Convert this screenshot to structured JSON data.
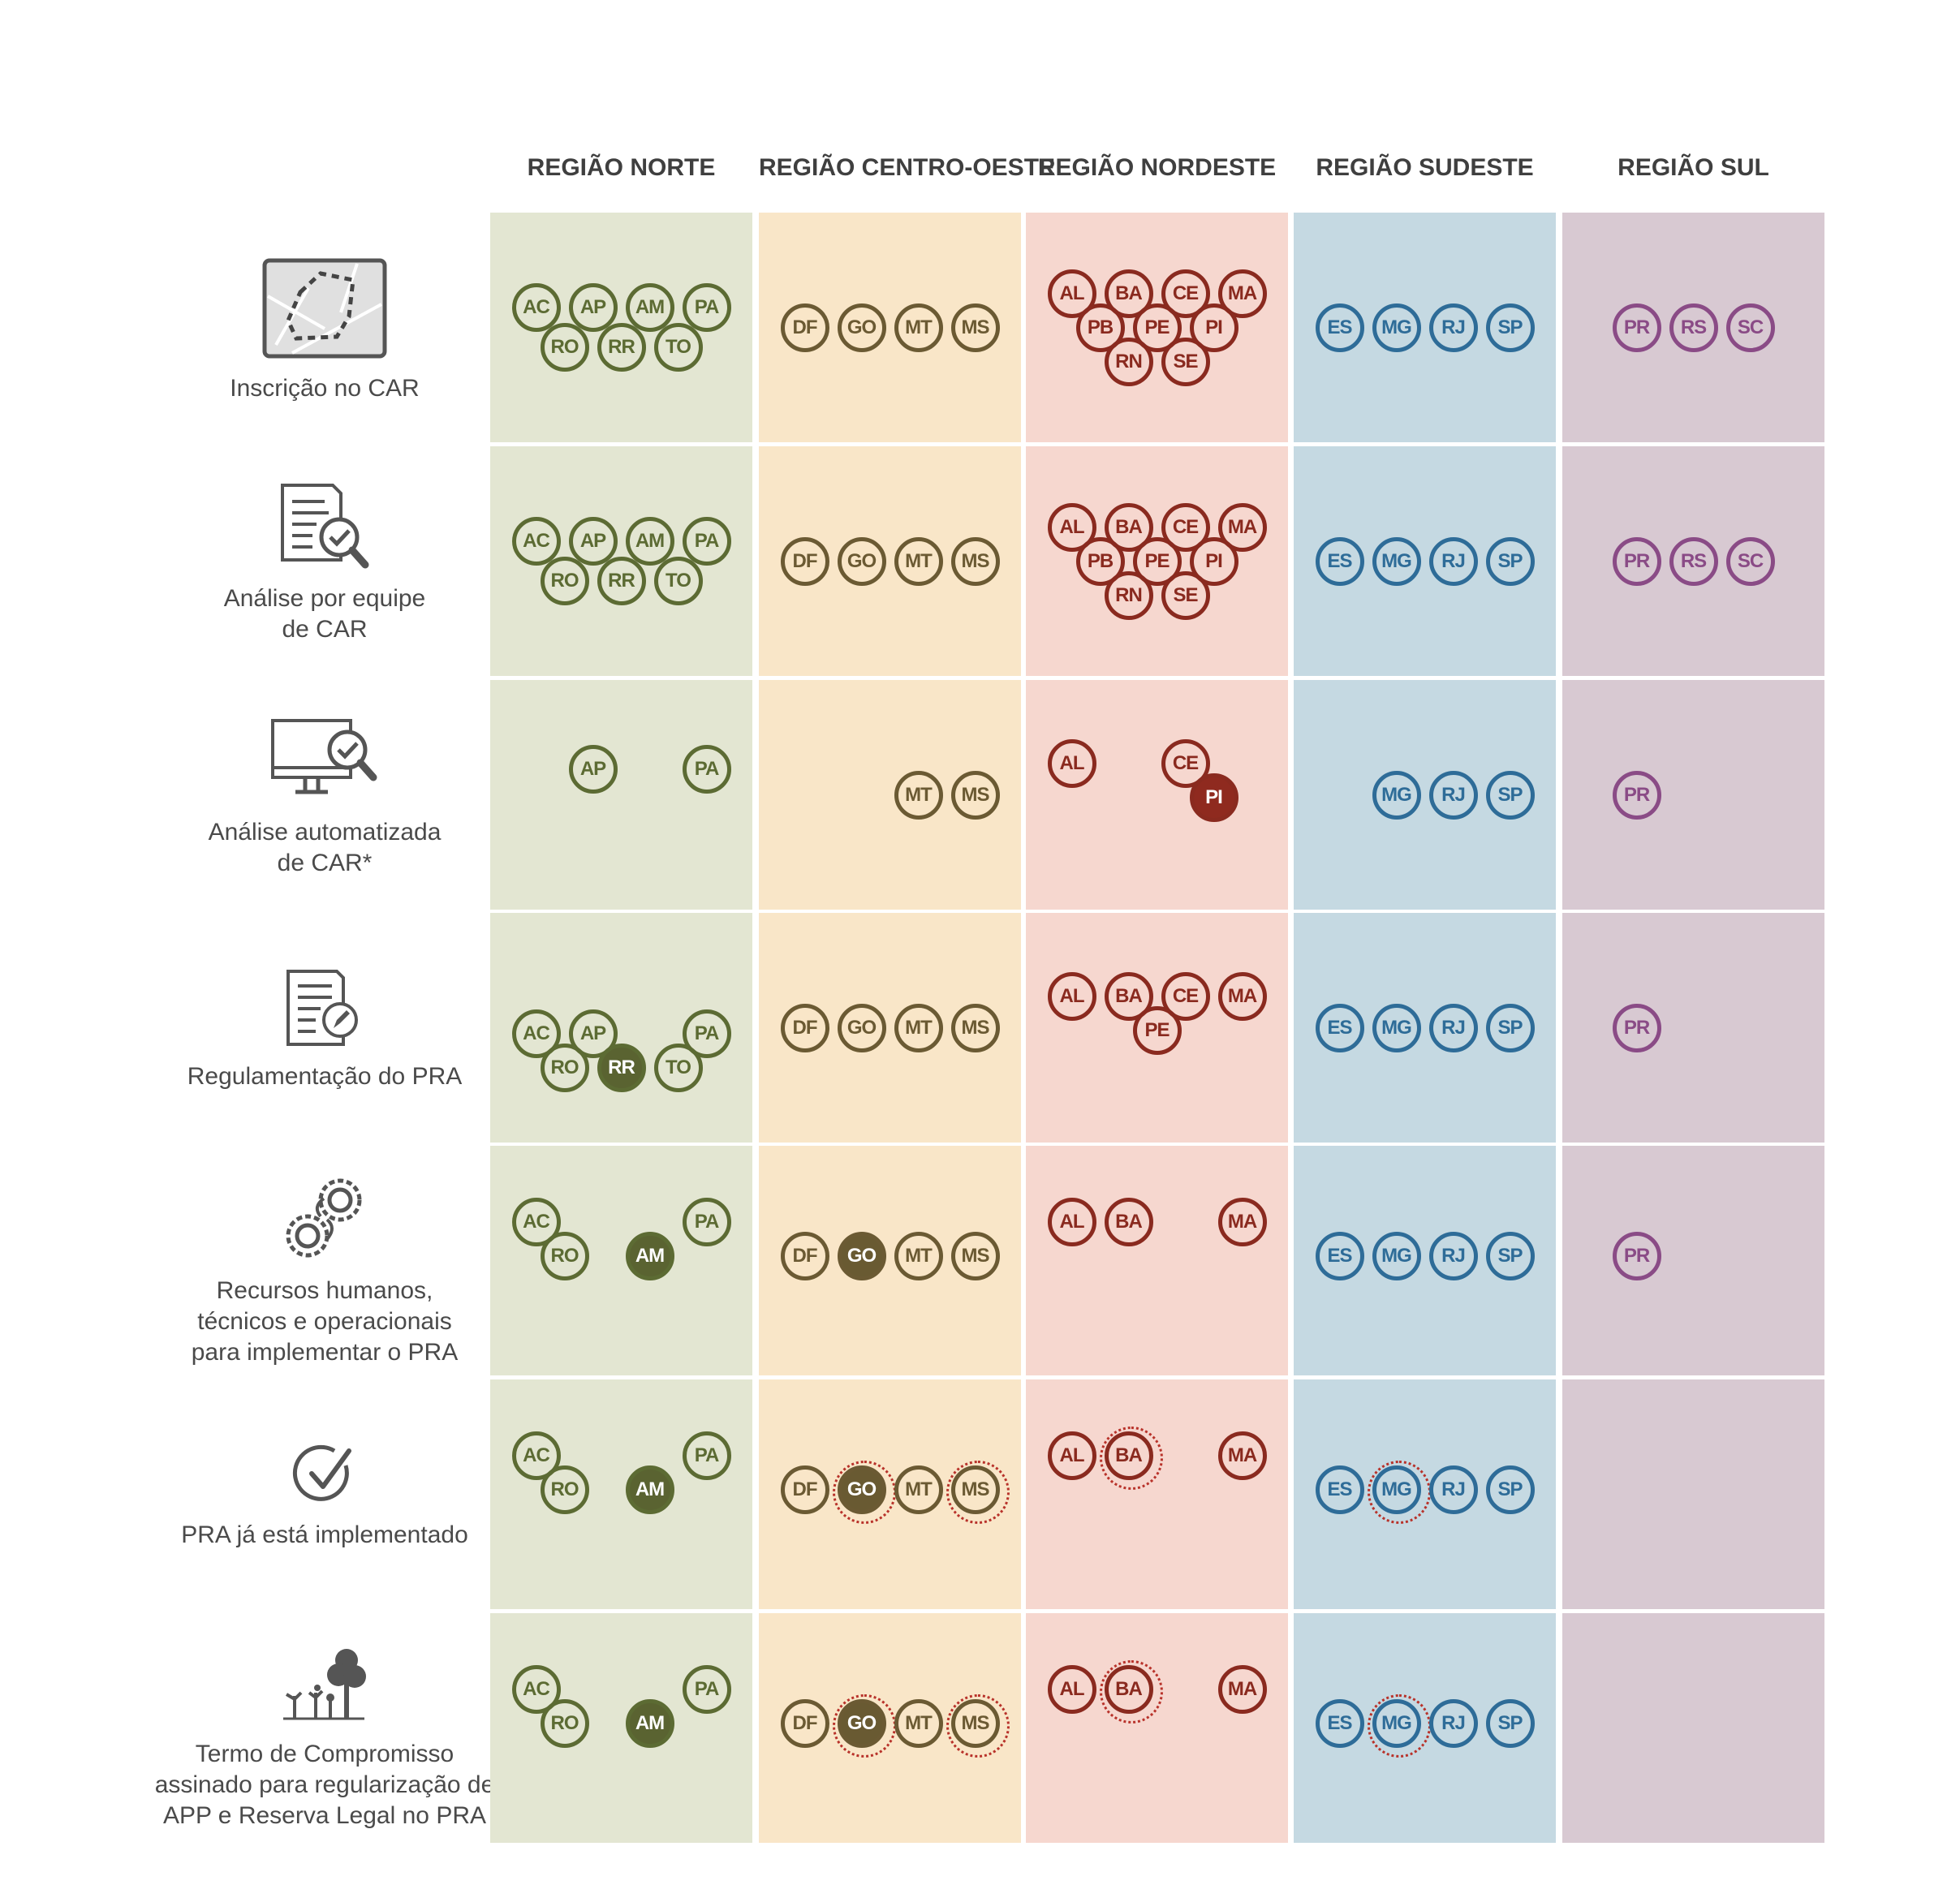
{
  "regions": [
    {
      "key": "norte",
      "name": "REGIÃO NORTE",
      "bg": "#e3e6d2",
      "color": "#5c6b33",
      "fill": "#5a6331"
    },
    {
      "key": "centro",
      "name": "REGIÃO CENTRO-OESTE",
      "bg": "#f9e6c8",
      "color": "#6b5a33",
      "fill": "#695a32"
    },
    {
      "key": "nordeste",
      "name": "REGIÃO NORDESTE",
      "bg": "#f6d7cf",
      "color": "#8a2a1f",
      "fill": "#8f2a1f"
    },
    {
      "key": "sudeste",
      "name": "REGIÃO SUDESTE",
      "bg": "#c5d9e2",
      "color": "#2e6c98",
      "fill": "#2e6c98"
    },
    {
      "key": "sul",
      "name": "REGIÃO SUL",
      "bg": "#d8c9d2",
      "color": "#8a4b86",
      "fill": "#8a4b86"
    }
  ],
  "rows": [
    {
      "icon": "map-plot-icon",
      "label": [
        "Inscrição no CAR"
      ],
      "cells": {
        "norte": [
          {
            "s": "AC"
          },
          {
            "s": "AP"
          },
          {
            "s": "AM"
          },
          {
            "s": "PA"
          },
          {
            "s": "RO"
          },
          {
            "s": "RR"
          },
          {
            "s": "TO"
          }
        ],
        "centro": [
          {
            "s": "DF"
          },
          {
            "s": "GO"
          },
          {
            "s": "MT"
          },
          {
            "s": "MS"
          }
        ],
        "nordeste": [
          {
            "s": "AL"
          },
          {
            "s": "BA"
          },
          {
            "s": "CE"
          },
          {
            "s": "MA"
          },
          {
            "s": "PB"
          },
          {
            "s": "PE"
          },
          {
            "s": "PI"
          },
          {
            "s": "RN"
          },
          {
            "s": "SE"
          }
        ],
        "sudeste": [
          {
            "s": "ES"
          },
          {
            "s": "MG"
          },
          {
            "s": "RJ"
          },
          {
            "s": "SP"
          }
        ],
        "sul": [
          {
            "s": "PR"
          },
          {
            "s": "RS"
          },
          {
            "s": "SC"
          }
        ]
      }
    },
    {
      "icon": "document-check-icon",
      "label": [
        "Análise por equipe",
        "de CAR"
      ],
      "cells": {
        "norte": [
          {
            "s": "AC"
          },
          {
            "s": "AP"
          },
          {
            "s": "AM"
          },
          {
            "s": "PA"
          },
          {
            "s": "RO"
          },
          {
            "s": "RR"
          },
          {
            "s": "TO"
          }
        ],
        "centro": [
          {
            "s": "DF"
          },
          {
            "s": "GO"
          },
          {
            "s": "MT"
          },
          {
            "s": "MS"
          }
        ],
        "nordeste": [
          {
            "s": "AL"
          },
          {
            "s": "BA"
          },
          {
            "s": "CE"
          },
          {
            "s": "MA"
          },
          {
            "s": "PB"
          },
          {
            "s": "PE"
          },
          {
            "s": "PI"
          },
          {
            "s": "RN"
          },
          {
            "s": "SE"
          }
        ],
        "sudeste": [
          {
            "s": "ES"
          },
          {
            "s": "MG"
          },
          {
            "s": "RJ"
          },
          {
            "s": "SP"
          }
        ],
        "sul": [
          {
            "s": "PR"
          },
          {
            "s": "RS"
          },
          {
            "s": "SC"
          }
        ]
      }
    },
    {
      "icon": "monitor-check-icon",
      "label": [
        "Análise automatizada",
        "de CAR*"
      ],
      "cells": {
        "norte": [
          {
            "s": "AP"
          },
          {
            "s": "PA"
          }
        ],
        "centro": [
          {
            "s": "MT"
          },
          {
            "s": "MS"
          }
        ],
        "nordeste": [
          {
            "s": "AL"
          },
          {
            "s": "CE"
          },
          {
            "s": "PI",
            "f": true
          }
        ],
        "sudeste": [
          {
            "s": "MG"
          },
          {
            "s": "RJ"
          },
          {
            "s": "SP"
          }
        ],
        "sul": [
          {
            "s": "PR"
          }
        ]
      }
    },
    {
      "icon": "document-pen-icon",
      "label": [
        "Regulamentação do PRA"
      ],
      "cells": {
        "norte": [
          {
            "s": "AC"
          },
          {
            "s": "AP"
          },
          {
            "s": "PA"
          },
          {
            "s": "RO"
          },
          {
            "s": "RR",
            "f": true
          },
          {
            "s": "TO"
          }
        ],
        "centro": [
          {
            "s": "DF"
          },
          {
            "s": "GO"
          },
          {
            "s": "MT"
          },
          {
            "s": "MS"
          }
        ],
        "nordeste": [
          {
            "s": "AL"
          },
          {
            "s": "BA"
          },
          {
            "s": "CE"
          },
          {
            "s": "MA"
          },
          {
            "s": "PE"
          }
        ],
        "sudeste": [
          {
            "s": "ES"
          },
          {
            "s": "MG"
          },
          {
            "s": "RJ"
          },
          {
            "s": "SP"
          }
        ],
        "sul": [
          {
            "s": "PR"
          }
        ]
      }
    },
    {
      "icon": "gears-icon",
      "label": [
        "Recursos humanos,",
        "técnicos e operacionais",
        "para implementar o PRA"
      ],
      "cells": {
        "norte": [
          {
            "s": "AC"
          },
          {
            "s": "PA"
          },
          {
            "s": "RO"
          },
          {
            "s": "AM",
            "f": true
          }
        ],
        "centro": [
          {
            "s": "DF"
          },
          {
            "s": "GO",
            "f": true
          },
          {
            "s": "MT"
          },
          {
            "s": "MS"
          }
        ],
        "nordeste": [
          {
            "s": "AL"
          },
          {
            "s": "BA"
          },
          {
            "s": "MA"
          }
        ],
        "sudeste": [
          {
            "s": "ES"
          },
          {
            "s": "MG"
          },
          {
            "s": "RJ"
          },
          {
            "s": "SP"
          }
        ],
        "sul": [
          {
            "s": "PR"
          }
        ]
      }
    },
    {
      "icon": "check-circle-icon",
      "label": [
        "PRA já está implementado"
      ],
      "cells": {
        "norte": [
          {
            "s": "AC"
          },
          {
            "s": "PA"
          },
          {
            "s": "RO"
          },
          {
            "s": "AM",
            "f": true
          }
        ],
        "centro": [
          {
            "s": "DF"
          },
          {
            "s": "GO",
            "f": true,
            "d": true
          },
          {
            "s": "MT"
          },
          {
            "s": "MS",
            "d": true
          }
        ],
        "nordeste": [
          {
            "s": "AL"
          },
          {
            "s": "BA",
            "d": true
          },
          {
            "s": "MA"
          }
        ],
        "sudeste": [
          {
            "s": "ES"
          },
          {
            "s": "MG",
            "d": true
          },
          {
            "s": "RJ"
          },
          {
            "s": "SP"
          }
        ],
        "sul": []
      }
    },
    {
      "icon": "trees-icon",
      "label": [
        "Termo de Compromisso",
        "assinado para regularização de",
        "APP e Reserva Legal no PRA"
      ],
      "cells": {
        "norte": [
          {
            "s": "AC"
          },
          {
            "s": "PA"
          },
          {
            "s": "RO"
          },
          {
            "s": "AM",
            "f": true
          }
        ],
        "centro": [
          {
            "s": "DF"
          },
          {
            "s": "GO",
            "f": true,
            "d": true
          },
          {
            "s": "MT"
          },
          {
            "s": "MS",
            "d": true
          }
        ],
        "nordeste": [
          {
            "s": "AL"
          },
          {
            "s": "BA",
            "d": true
          },
          {
            "s": "MA"
          }
        ],
        "sudeste": [
          {
            "s": "ES"
          },
          {
            "s": "MG",
            "d": true
          },
          {
            "s": "RJ"
          },
          {
            "s": "SP"
          }
        ],
        "sul": []
      }
    }
  ]
}
